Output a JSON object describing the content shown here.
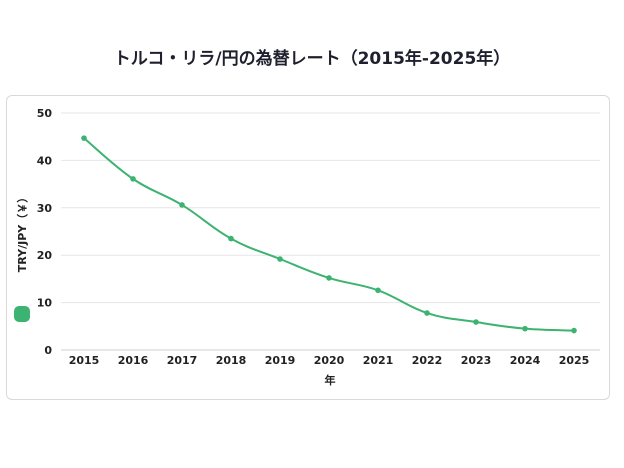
{
  "chart_data": {
    "type": "line",
    "title": "トルコ・リラ/円の為替レート（2015年-2025年）",
    "xlabel": "年",
    "ylabel": "TRY/JPY（￥）",
    "categories": [
      "2015",
      "2016",
      "2017",
      "2018",
      "2019",
      "2020",
      "2021",
      "2022",
      "2023",
      "2024",
      "2025"
    ],
    "series": [
      {
        "values": [
          44.7,
          36.1,
          30.6,
          23.5,
          19.2,
          15.2,
          12.6,
          7.8,
          5.9,
          4.5,
          4.1
        ]
      }
    ],
    "ylim": [
      0,
      50
    ],
    "yticks": [
      0,
      10,
      20,
      30,
      40,
      50
    ],
    "grid": true,
    "legend": "left",
    "colors": {
      "line": "#3cb371",
      "grid": "#e6e6e6"
    }
  }
}
